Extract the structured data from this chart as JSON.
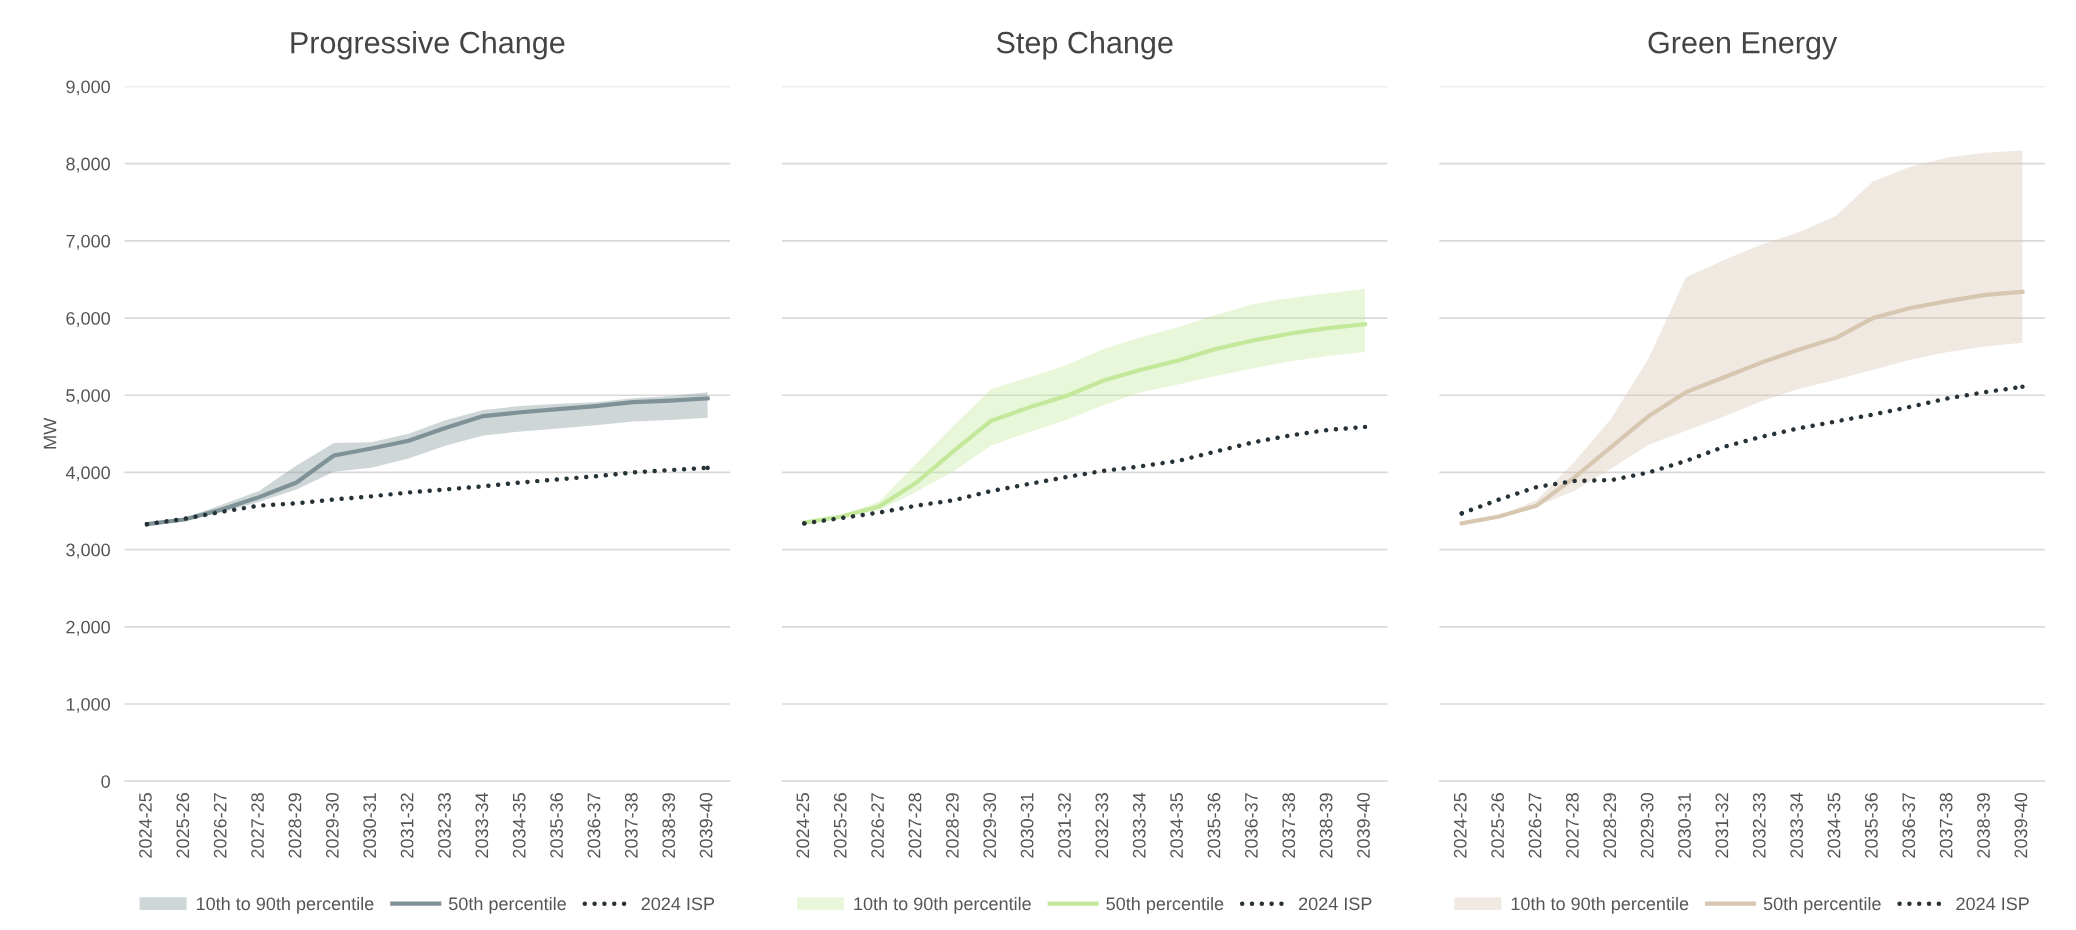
{
  "chart_data": [
    {
      "type": "line",
      "title": "Progressive Change",
      "ylabel": "MW",
      "annotations": [
        "10th to 90th percentile"
      ],
      "categories": [
        "2024-25",
        "2025-26",
        "2026-27",
        "2027-28",
        "2028-29",
        "2029-30",
        "2030-31",
        "2031-32",
        "2032-33",
        "2033-34",
        "2034-35",
        "2035-36",
        "2036-37",
        "2037-38",
        "2038-39",
        "2039-40"
      ],
      "series": [
        {
          "name": "50th percentile",
          "type": "line",
          "color": "#7f9298",
          "line_style": "solid",
          "values": [
            3330,
            3390,
            3520,
            3680,
            3870,
            4220,
            4310,
            4410,
            4580,
            4730,
            4780,
            4820,
            4860,
            4910,
            4930,
            4960
          ],
          "lower": [
            3320,
            3380,
            3480,
            3620,
            3780,
            4010,
            4060,
            4180,
            4350,
            4480,
            4530,
            4570,
            4610,
            4660,
            4680,
            4710
          ],
          "upper": [
            3340,
            3410,
            3580,
            3760,
            4090,
            4380,
            4390,
            4500,
            4680,
            4810,
            4860,
            4890,
            4910,
            4960,
            4990,
            5040
          ]
        },
        {
          "name": "2024 ISP",
          "type": "line",
          "color": "#263238",
          "line_style": "dotted",
          "values": [
            3330,
            3400,
            3490,
            3570,
            3600,
            3650,
            3690,
            3740,
            3780,
            3820,
            3870,
            3910,
            3950,
            4000,
            4030,
            4060
          ]
        }
      ],
      "ylim": [
        0,
        9000
      ],
      "yticks": [
        0,
        {
          "value": 1000,
          "label": "1,000"
        },
        {
          "value": 2000,
          "label": "2,000"
        },
        {
          "value": 3000,
          "label": "3,000"
        },
        {
          "value": 4000,
          "label": "4,000"
        },
        {
          "value": 5000,
          "label": "5,000"
        },
        {
          "value": 6000,
          "label": "6,000"
        },
        {
          "value": 7000,
          "label": "7,000"
        },
        {
          "value": 8000,
          "label": "8,000"
        },
        {
          "value": 9000,
          "label": "9,000"
        }
      ],
      "grid": "y",
      "legend": "bottom"
    },
    {
      "type": "line",
      "title": "Step Change",
      "annotations": [
        "10th to 90th percentile"
      ],
      "categories": [
        "2024-25",
        "2025-26",
        "2026-27",
        "2027-28",
        "2028-29",
        "2029-30",
        "2030-31",
        "2031-32",
        "2032-33",
        "2033-34",
        "2034-35",
        "2035-36",
        "2036-37",
        "2037-38",
        "2038-39",
        "2039-40"
      ],
      "series": [
        {
          "name": "50th percentile",
          "type": "line",
          "color": "#c3e89a",
          "line_style": "solid",
          "values": [
            3350,
            3430,
            3560,
            3870,
            4280,
            4670,
            4840,
            4990,
            5190,
            5330,
            5450,
            5600,
            5710,
            5800,
            5870,
            5920
          ],
          "lower": [
            3340,
            3420,
            3510,
            3750,
            4020,
            4350,
            4520,
            4680,
            4870,
            5040,
            5140,
            5250,
            5350,
            5440,
            5510,
            5560
          ],
          "upper": [
            3360,
            3450,
            3620,
            4120,
            4610,
            5080,
            5230,
            5390,
            5600,
            5750,
            5880,
            6040,
            6180,
            6260,
            6320,
            6380
          ]
        },
        {
          "name": "2024 ISP",
          "type": "line",
          "color": "#263238",
          "line_style": "dotted",
          "values": [
            3340,
            3410,
            3480,
            3570,
            3640,
            3760,
            3850,
            3940,
            4020,
            4080,
            4150,
            4270,
            4390,
            4480,
            4550,
            4590
          ]
        }
      ],
      "ylim": [
        0,
        9000
      ],
      "tick_labels": "x",
      "grid": "y",
      "legend": "bottom"
    },
    {
      "type": "line",
      "title": "Green Energy",
      "annotations": [
        "10th to 90th percentile"
      ],
      "categories": [
        "2024-25",
        "2025-26",
        "2026-27",
        "2027-28",
        "2028-29",
        "2029-30",
        "2030-31",
        "2031-32",
        "2032-33",
        "2033-34",
        "2034-35",
        "2035-36",
        "2036-37",
        "2037-38",
        "2038-39",
        "2039-40"
      ],
      "series": [
        {
          "name": "50th percentile",
          "type": "line",
          "color": "#d7c6b0",
          "line_style": "solid",
          "values": [
            3340,
            3430,
            3570,
            3930,
            4330,
            4730,
            5040,
            5230,
            5420,
            5590,
            5740,
            6000,
            6130,
            6220,
            6300,
            6340
          ],
          "lower": [
            3340,
            3420,
            3560,
            3760,
            4050,
            4360,
            4540,
            4720,
            4920,
            5080,
            5200,
            5330,
            5460,
            5560,
            5630,
            5680
          ],
          "upper": [
            3350,
            3440,
            3640,
            4130,
            4700,
            5480,
            6530,
            6750,
            6950,
            7110,
            7320,
            7770,
            7960,
            8080,
            8140,
            8170
          ]
        },
        {
          "name": "2024 ISP",
          "type": "line",
          "color": "#263238",
          "line_style": "dotted",
          "values": [
            3470,
            3650,
            3810,
            3890,
            3900,
            4000,
            4150,
            4330,
            4460,
            4570,
            4660,
            4750,
            4850,
            4960,
            5040,
            5110
          ]
        }
      ],
      "ylim": [
        0,
        9000
      ],
      "tick_labels": "x",
      "grid": "y",
      "legend": "bottom"
    }
  ]
}
